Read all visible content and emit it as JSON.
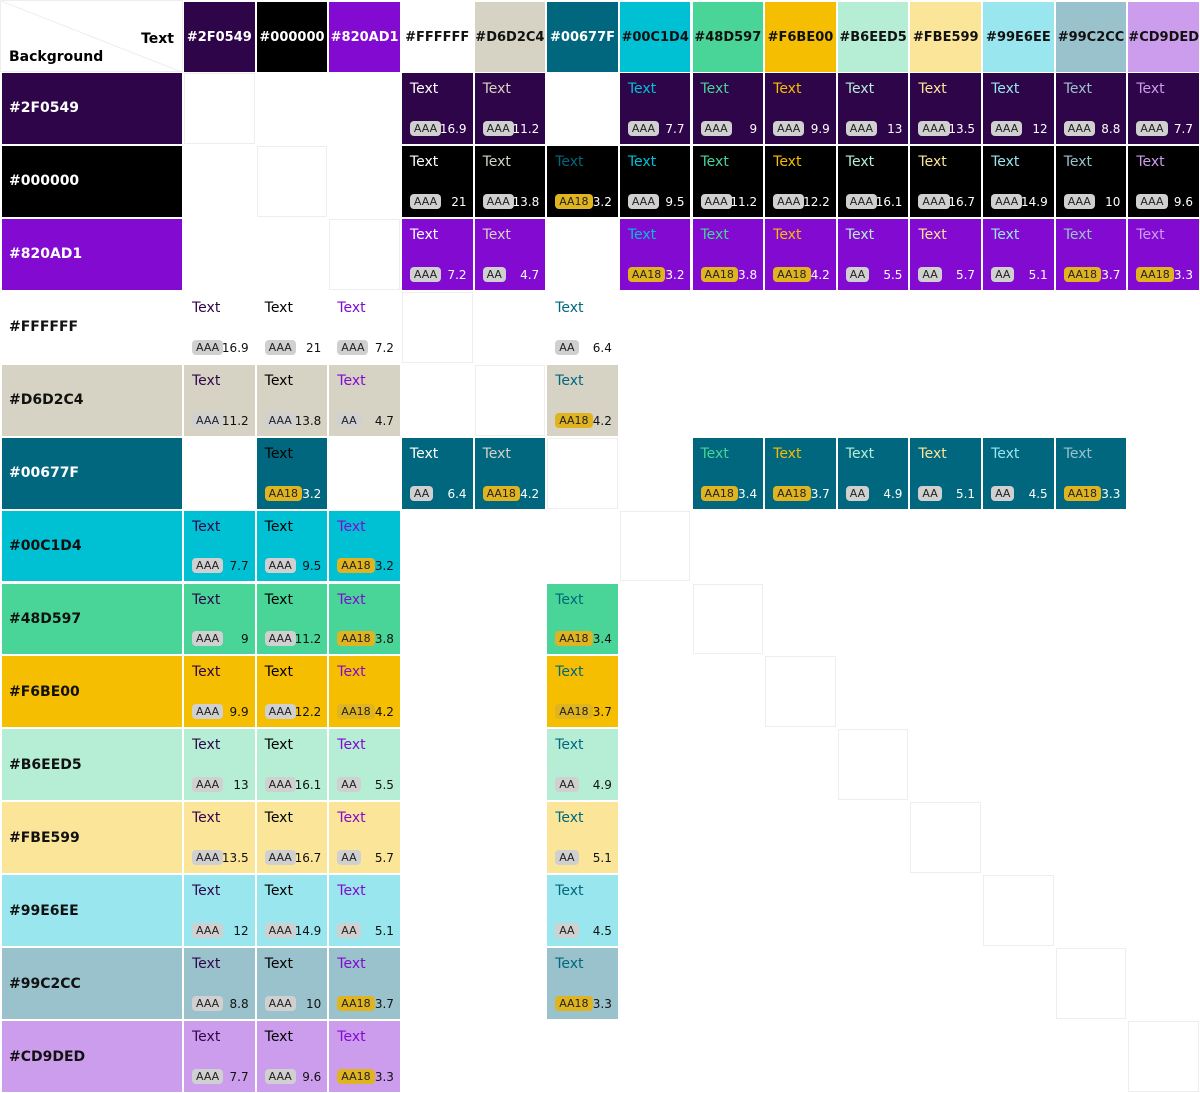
{
  "header": {
    "text_label": "Text",
    "background_label": "Background"
  },
  "columns": [
    "#2F0549",
    "#000000",
    "#820AD1",
    "#FFFFFF",
    "#D6D2C4",
    "#00677F",
    "#00C1D4",
    "#48D597",
    "#F6BE00",
    "#B6EED5",
    "#FBE599",
    "#99E6EE",
    "#99C2CC",
    "#CD9DED"
  ],
  "rows": [
    {
      "label": "#2F0549",
      "cells": [
        null,
        null,
        null,
        {
          "text": "Text",
          "badge": "AAA",
          "ratio": 16.9
        },
        {
          "text": "Text",
          "badge": "AAA",
          "ratio": 11.2
        },
        null,
        {
          "text": "Text",
          "badge": "AAA",
          "ratio": 7.7
        },
        {
          "text": "Text",
          "badge": "AAA",
          "ratio": 9
        },
        {
          "text": "Text",
          "badge": "AAA",
          "ratio": 9.9
        },
        {
          "text": "Text",
          "badge": "AAA",
          "ratio": 13
        },
        {
          "text": "Text",
          "badge": "AAA",
          "ratio": 13.5
        },
        {
          "text": "Text",
          "badge": "AAA",
          "ratio": 12
        },
        {
          "text": "Text",
          "badge": "AAA",
          "ratio": 8.8
        },
        {
          "text": "Text",
          "badge": "AAA",
          "ratio": 7.7
        }
      ]
    },
    {
      "label": "#000000",
      "cells": [
        null,
        null,
        null,
        {
          "text": "Text",
          "badge": "AAA",
          "ratio": 21
        },
        {
          "text": "Text",
          "badge": "AAA",
          "ratio": 13.8
        },
        {
          "text": "Text",
          "badge": "AA18",
          "ratio": 3.2
        },
        {
          "text": "Text",
          "badge": "AAA",
          "ratio": 9.5
        },
        {
          "text": "Text",
          "badge": "AAA",
          "ratio": 11.2
        },
        {
          "text": "Text",
          "badge": "AAA",
          "ratio": 12.2
        },
        {
          "text": "Text",
          "badge": "AAA",
          "ratio": 16.1
        },
        {
          "text": "Text",
          "badge": "AAA",
          "ratio": 16.7
        },
        {
          "text": "Text",
          "badge": "AAA",
          "ratio": 14.9
        },
        {
          "text": "Text",
          "badge": "AAA",
          "ratio": 10
        },
        {
          "text": "Text",
          "badge": "AAA",
          "ratio": 9.6
        }
      ]
    },
    {
      "label": "#820AD1",
      "cells": [
        null,
        null,
        null,
        {
          "text": "Text",
          "badge": "AAA",
          "ratio": 7.2
        },
        {
          "text": "Text",
          "badge": "AA",
          "ratio": 4.7
        },
        null,
        {
          "text": "Text",
          "badge": "AA18",
          "ratio": 3.2
        },
        {
          "text": "Text",
          "badge": "AA18",
          "ratio": 3.8
        },
        {
          "text": "Text",
          "badge": "AA18",
          "ratio": 4.2
        },
        {
          "text": "Text",
          "badge": "AA",
          "ratio": 5.5
        },
        {
          "text": "Text",
          "badge": "AA",
          "ratio": 5.7
        },
        {
          "text": "Text",
          "badge": "AA",
          "ratio": 5.1
        },
        {
          "text": "Text",
          "badge": "AA18",
          "ratio": 3.7
        },
        {
          "text": "Text",
          "badge": "AA18",
          "ratio": 3.3
        }
      ]
    },
    {
      "label": "#FFFFFF",
      "cells": [
        {
          "text": "Text",
          "badge": "AAA",
          "ratio": 16.9
        },
        {
          "text": "Text",
          "badge": "AAA",
          "ratio": 21
        },
        {
          "text": "Text",
          "badge": "AAA",
          "ratio": 7.2
        },
        null,
        null,
        {
          "text": "Text",
          "badge": "AA",
          "ratio": 6.4
        },
        null,
        null,
        null,
        null,
        null,
        null,
        null,
        null
      ]
    },
    {
      "label": "#D6D2C4",
      "cells": [
        {
          "text": "Text",
          "badge": "AAA",
          "ratio": 11.2
        },
        {
          "text": "Text",
          "badge": "AAA",
          "ratio": 13.8
        },
        {
          "text": "Text",
          "badge": "AA",
          "ratio": 4.7
        },
        null,
        null,
        {
          "text": "Text",
          "badge": "AA18",
          "ratio": 4.2
        },
        null,
        null,
        null,
        null,
        null,
        null,
        null,
        null
      ]
    },
    {
      "label": "#00677F",
      "cells": [
        null,
        {
          "text": "Text",
          "badge": "AA18",
          "ratio": 3.2
        },
        null,
        {
          "text": "Text",
          "badge": "AA",
          "ratio": 6.4
        },
        {
          "text": "Text",
          "badge": "AA18",
          "ratio": 4.2
        },
        null,
        null,
        {
          "text": "Text",
          "badge": "AA18",
          "ratio": 3.4
        },
        {
          "text": "Text",
          "badge": "AA18",
          "ratio": 3.7
        },
        {
          "text": "Text",
          "badge": "AA",
          "ratio": 4.9
        },
        {
          "text": "Text",
          "badge": "AA",
          "ratio": 5.1
        },
        {
          "text": "Text",
          "badge": "AA",
          "ratio": 4.5
        },
        {
          "text": "Text",
          "badge": "AA18",
          "ratio": 3.3
        },
        null
      ]
    },
    {
      "label": "#00C1D4",
      "cells": [
        {
          "text": "Text",
          "badge": "AAA",
          "ratio": 7.7
        },
        {
          "text": "Text",
          "badge": "AAA",
          "ratio": 9.5
        },
        {
          "text": "Text",
          "badge": "AA18",
          "ratio": 3.2
        },
        null,
        null,
        null,
        null,
        null,
        null,
        null,
        null,
        null,
        null,
        null
      ]
    },
    {
      "label": "#48D597",
      "cells": [
        {
          "text": "Text",
          "badge": "AAA",
          "ratio": 9
        },
        {
          "text": "Text",
          "badge": "AAA",
          "ratio": 11.2
        },
        {
          "text": "Text",
          "badge": "AA18",
          "ratio": 3.8
        },
        null,
        null,
        {
          "text": "Text",
          "badge": "AA18",
          "ratio": 3.4
        },
        null,
        null,
        null,
        null,
        null,
        null,
        null,
        null
      ]
    },
    {
      "label": "#F6BE00",
      "cells": [
        {
          "text": "Text",
          "badge": "AAA",
          "ratio": 9.9
        },
        {
          "text": "Text",
          "badge": "AAA",
          "ratio": 12.2
        },
        {
          "text": "Text",
          "badge": "AA18",
          "ratio": 4.2
        },
        null,
        null,
        {
          "text": "Text",
          "badge": "AA18",
          "ratio": 3.7
        },
        null,
        null,
        null,
        null,
        null,
        null,
        null,
        null
      ]
    },
    {
      "label": "#B6EED5",
      "cells": [
        {
          "text": "Text",
          "badge": "AAA",
          "ratio": 13
        },
        {
          "text": "Text",
          "badge": "AAA",
          "ratio": 16.1
        },
        {
          "text": "Text",
          "badge": "AA",
          "ratio": 5.5
        },
        null,
        null,
        {
          "text": "Text",
          "badge": "AA",
          "ratio": 4.9
        },
        null,
        null,
        null,
        null,
        null,
        null,
        null,
        null
      ]
    },
    {
      "label": "#FBE599",
      "cells": [
        {
          "text": "Text",
          "badge": "AAA",
          "ratio": 13.5
        },
        {
          "text": "Text",
          "badge": "AAA",
          "ratio": 16.7
        },
        {
          "text": "Text",
          "badge": "AA",
          "ratio": 5.7
        },
        null,
        null,
        {
          "text": "Text",
          "badge": "AA",
          "ratio": 5.1
        },
        null,
        null,
        null,
        null,
        null,
        null,
        null,
        null
      ]
    },
    {
      "label": "#99E6EE",
      "cells": [
        {
          "text": "Text",
          "badge": "AAA",
          "ratio": 12
        },
        {
          "text": "Text",
          "badge": "AAA",
          "ratio": 14.9
        },
        {
          "text": "Text",
          "badge": "AA",
          "ratio": 5.1
        },
        null,
        null,
        {
          "text": "Text",
          "badge": "AA",
          "ratio": 4.5
        },
        null,
        null,
        null,
        null,
        null,
        null,
        null,
        null
      ]
    },
    {
      "label": "#99C2CC",
      "cells": [
        {
          "text": "Text",
          "badge": "AAA",
          "ratio": 8.8
        },
        {
          "text": "Text",
          "badge": "AAA",
          "ratio": 10
        },
        {
          "text": "Text",
          "badge": "AA18",
          "ratio": 3.7
        },
        null,
        null,
        {
          "text": "Text",
          "badge": "AA18",
          "ratio": 3.3
        },
        null,
        null,
        null,
        null,
        null,
        null,
        null,
        null
      ]
    },
    {
      "label": "#CD9DED",
      "cells": [
        {
          "text": "Text",
          "badge": "AAA",
          "ratio": 7.7
        },
        {
          "text": "Text",
          "badge": "AAA",
          "ratio": 9.6
        },
        {
          "text": "Text",
          "badge": "AA18",
          "ratio": 3.3
        },
        null,
        null,
        null,
        null,
        null,
        null,
        null,
        null,
        null,
        null,
        null
      ]
    }
  ]
}
